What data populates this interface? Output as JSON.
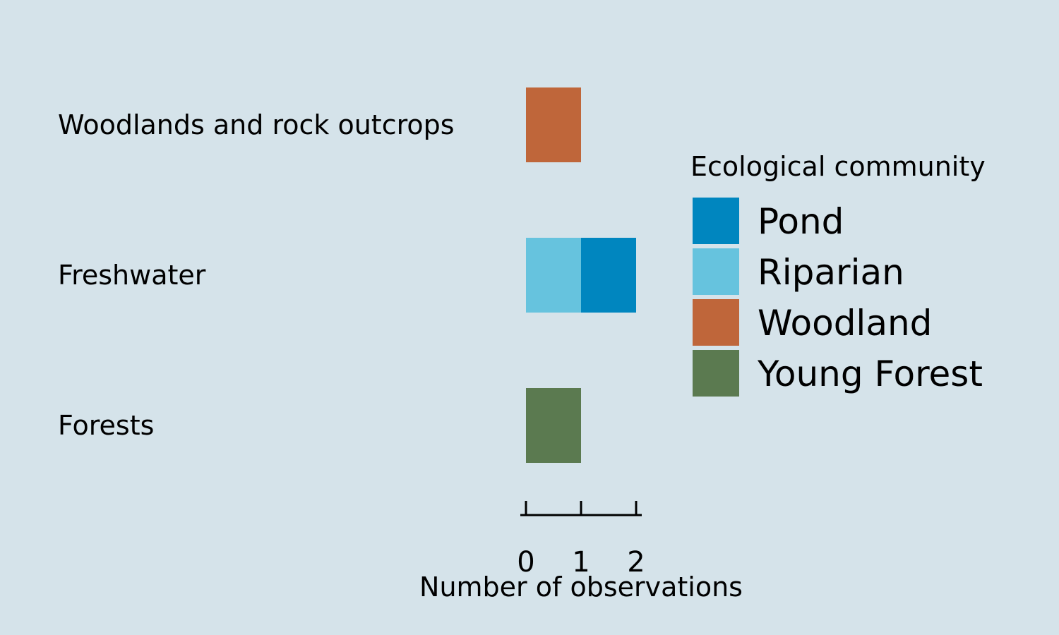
{
  "chart_data": {
    "type": "bar",
    "orientation": "horizontal",
    "stacked": true,
    "categories": [
      "Woodlands and rock outcrops",
      "Freshwater",
      "Forests"
    ],
    "series": [
      {
        "name": "Riparian",
        "color": "#66c3de",
        "values": [
          0,
          1,
          0
        ]
      },
      {
        "name": "Pond",
        "color": "#0086bf",
        "values": [
          0,
          1,
          0
        ]
      },
      {
        "name": "Woodland",
        "color": "#bf663a",
        "values": [
          1,
          0,
          0
        ]
      },
      {
        "name": "Young Forest",
        "color": "#5b7a50",
        "values": [
          0,
          0,
          1
        ]
      }
    ],
    "legend": {
      "title": "Ecological community",
      "items": [
        "Pond",
        "Riparian",
        "Woodland",
        "Young Forest"
      ],
      "placement": "right"
    },
    "xlabel": "Number of observations",
    "ylabel": "",
    "xlim": [
      0,
      2
    ],
    "xticks": [
      0,
      1,
      2
    ],
    "grid": false,
    "background": "#d5e3ea"
  }
}
